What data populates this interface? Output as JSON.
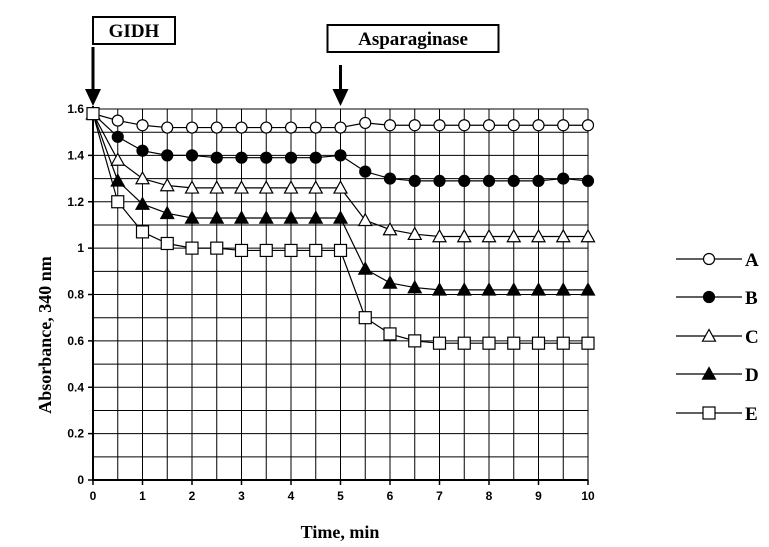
{
  "chart_data": {
    "type": "line",
    "xlabel": "Time, min",
    "ylabel": "Absorbance, 340 nm",
    "xlim": [
      0,
      10
    ],
    "ylim": [
      0,
      1.6
    ],
    "xticks": [
      "0",
      "1",
      "2",
      "3",
      "4",
      "5",
      "6",
      "7",
      "8",
      "9",
      "10"
    ],
    "yticks": [
      "0",
      "0.2",
      "0.4",
      "0.6",
      "0.8",
      "1",
      "1.2",
      "1.4",
      "1.6"
    ],
    "grid": true,
    "legend_position": "right",
    "x": [
      0,
      0.5,
      1,
      1.5,
      2,
      2.5,
      3,
      3.5,
      4,
      4.5,
      5,
      5.5,
      6,
      6.5,
      7,
      7.5,
      8,
      8.5,
      9,
      9.5,
      10
    ],
    "series": [
      {
        "name": "A",
        "marker": "circle-open",
        "values": [
          1.58,
          1.55,
          1.53,
          1.52,
          1.52,
          1.52,
          1.52,
          1.52,
          1.52,
          1.52,
          1.52,
          1.54,
          1.53,
          1.53,
          1.53,
          1.53,
          1.53,
          1.53,
          1.53,
          1.53,
          1.53
        ]
      },
      {
        "name": "B",
        "marker": "circle-filled",
        "values": [
          1.58,
          1.48,
          1.42,
          1.4,
          1.4,
          1.39,
          1.39,
          1.39,
          1.39,
          1.39,
          1.4,
          1.33,
          1.3,
          1.29,
          1.29,
          1.29,
          1.29,
          1.29,
          1.29,
          1.3,
          1.29
        ]
      },
      {
        "name": "C",
        "marker": "triangle-open",
        "values": [
          1.58,
          1.38,
          1.3,
          1.27,
          1.26,
          1.26,
          1.26,
          1.26,
          1.26,
          1.26,
          1.26,
          1.12,
          1.08,
          1.06,
          1.05,
          1.05,
          1.05,
          1.05,
          1.05,
          1.05,
          1.05
        ]
      },
      {
        "name": "D",
        "marker": "triangle-filled",
        "values": [
          1.58,
          1.29,
          1.19,
          1.15,
          1.13,
          1.13,
          1.13,
          1.13,
          1.13,
          1.13,
          1.13,
          0.91,
          0.85,
          0.83,
          0.82,
          0.82,
          0.82,
          0.82,
          0.82,
          0.82,
          0.82
        ]
      },
      {
        "name": "E",
        "marker": "square-open",
        "values": [
          1.58,
          1.2,
          1.07,
          1.02,
          1.0,
          1.0,
          0.99,
          0.99,
          0.99,
          0.99,
          0.99,
          0.7,
          0.63,
          0.6,
          0.59,
          0.59,
          0.59,
          0.59,
          0.59,
          0.59,
          0.59
        ]
      }
    ],
    "annotations": [
      {
        "label": "GIDH",
        "x": 0
      },
      {
        "label": "Asparaginase",
        "x": 5
      }
    ]
  }
}
